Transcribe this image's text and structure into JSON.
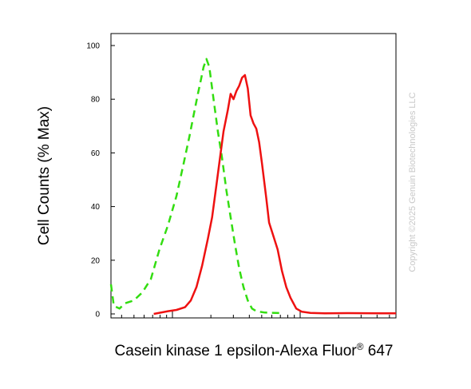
{
  "chart_data": {
    "type": "line",
    "xlabel": "Casein kinase 1 epsilon-Alexa Fluor",
    "xlabel_superscript": "®",
    "xlabel_suffix": " 647",
    "ylabel": "Cell Counts (% Max)",
    "ylim": [
      0,
      100
    ],
    "yticks": [
      "0",
      "20",
      "40",
      "60",
      "80",
      "100"
    ],
    "x_scale": "log",
    "x_tick_labels": "none",
    "grid": false,
    "legend": "none",
    "watermark": "Copyright ©2025 Genuin Biotechnologies LLC",
    "series": [
      {
        "style": "dashed",
        "color": "#33dd11",
        "values": [
          [
            0.0,
            11
          ],
          [
            0.01,
            3
          ],
          [
            0.03,
            2
          ],
          [
            0.05,
            4
          ],
          [
            0.08,
            5
          ],
          [
            0.11,
            8
          ],
          [
            0.14,
            13
          ],
          [
            0.17,
            24
          ],
          [
            0.2,
            33
          ],
          [
            0.23,
            44
          ],
          [
            0.255,
            56
          ],
          [
            0.275,
            66
          ],
          [
            0.29,
            74
          ],
          [
            0.305,
            82
          ],
          [
            0.315,
            87
          ],
          [
            0.325,
            92
          ],
          [
            0.335,
            95
          ],
          [
            0.345,
            92
          ],
          [
            0.36,
            80
          ],
          [
            0.375,
            68
          ],
          [
            0.39,
            58
          ],
          [
            0.405,
            46
          ],
          [
            0.42,
            36
          ],
          [
            0.435,
            26
          ],
          [
            0.45,
            17
          ],
          [
            0.465,
            10
          ],
          [
            0.48,
            5
          ],
          [
            0.495,
            2
          ],
          [
            0.51,
            1
          ],
          [
            0.54,
            0.5
          ],
          [
            0.6,
            0.3
          ]
        ]
      },
      {
        "style": "solid",
        "color": "#ee1111",
        "values": [
          [
            0.15,
            0
          ],
          [
            0.2,
            1
          ],
          [
            0.23,
            1.5
          ],
          [
            0.26,
            2.5
          ],
          [
            0.28,
            5
          ],
          [
            0.3,
            10
          ],
          [
            0.32,
            18
          ],
          [
            0.34,
            28
          ],
          [
            0.355,
            36
          ],
          [
            0.37,
            48
          ],
          [
            0.385,
            60
          ],
          [
            0.395,
            68
          ],
          [
            0.41,
            76
          ],
          [
            0.42,
            82
          ],
          [
            0.43,
            80
          ],
          [
            0.44,
            83
          ],
          [
            0.45,
            85
          ],
          [
            0.46,
            88
          ],
          [
            0.47,
            89
          ],
          [
            0.48,
            84
          ],
          [
            0.49,
            74
          ],
          [
            0.5,
            71
          ],
          [
            0.51,
            69
          ],
          [
            0.52,
            64
          ],
          [
            0.53,
            56
          ],
          [
            0.545,
            43
          ],
          [
            0.555,
            34
          ],
          [
            0.57,
            29
          ],
          [
            0.585,
            24
          ],
          [
            0.6,
            16
          ],
          [
            0.615,
            10
          ],
          [
            0.63,
            6
          ],
          [
            0.65,
            2
          ],
          [
            0.67,
            0.8
          ],
          [
            0.7,
            0.4
          ],
          [
            0.75,
            0.2
          ],
          [
            0.83,
            0.3
          ],
          [
            0.95,
            0.2
          ],
          [
            1.0,
            0.2
          ]
        ]
      }
    ]
  }
}
